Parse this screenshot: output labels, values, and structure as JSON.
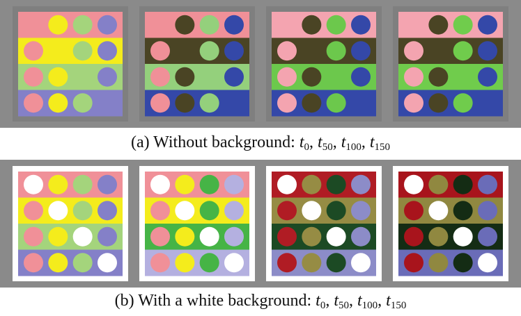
{
  "colors": {
    "row_bg": "#8a8a8a",
    "frame_gray": "#7f7f7f",
    "frame_white": "#ffffff"
  },
  "figure_a": {
    "caption_text": "(a) Without background:",
    "frame": "gray",
    "panels": [
      {
        "stripes": [
          "#f09098",
          "#f4ec1c",
          "#a4d47c",
          "#8480c8"
        ],
        "circles": [
          [
            "#f4ec1c",
            "#a4d47c",
            "#8480c8"
          ],
          [
            "#f09098",
            "#a4d47c",
            "#8480c8"
          ],
          [
            "#f09098",
            "#f4ec1c",
            "#8480c8"
          ],
          [
            "#f09098",
            "#f4ec1c",
            "#a4d47c"
          ]
        ]
      },
      {
        "stripes": [
          "#f09098",
          "#4a4424",
          "#94d07c",
          "#3448a8"
        ],
        "circles": [
          [
            "#4a4424",
            "#94d07c",
            "#3448a8"
          ],
          [
            "#f09098",
            "#94d07c",
            "#3448a8"
          ],
          [
            "#f09098",
            "#4a4424",
            "#3448a8"
          ],
          [
            "#f09098",
            "#4a4424",
            "#94d07c"
          ]
        ]
      },
      {
        "stripes": [
          "#f4a4b0",
          "#4a4424",
          "#6cc84c",
          "#3448a8"
        ],
        "circles": [
          [
            "#4a4424",
            "#6cc84c",
            "#3448a8"
          ],
          [
            "#f4a4b0",
            "#6cc84c",
            "#3448a8"
          ],
          [
            "#f4a4b0",
            "#4a4424",
            "#3448a8"
          ],
          [
            "#f4a4b0",
            "#4a4424",
            "#6cc84c"
          ]
        ]
      },
      {
        "stripes": [
          "#f4a4b0",
          "#4a4424",
          "#70cc4c",
          "#3448a8"
        ],
        "circles": [
          [
            "#4a4424",
            "#70cc4c",
            "#3448a8"
          ],
          [
            "#f4a4b0",
            "#70cc4c",
            "#3448a8"
          ],
          [
            "#f4a4b0",
            "#4a4424",
            "#3448a8"
          ],
          [
            "#f4a4b0",
            "#4a4424",
            "#70cc4c"
          ]
        ]
      }
    ]
  },
  "figure_b": {
    "caption_text": "(b) With a white background:",
    "frame": "white",
    "panels": [
      {
        "stripes": [
          "#f09098",
          "#f4ec1c",
          "#a4d47c",
          "#8480c8"
        ],
        "circles": [
          [
            "#ffffff",
            "#f4ec1c",
            "#a4d47c",
            "#8480c8"
          ],
          [
            "#f09098",
            "#ffffff",
            "#a4d47c",
            "#8480c8"
          ],
          [
            "#f09098",
            "#f4ec1c",
            "#ffffff",
            "#8480c8"
          ],
          [
            "#f09098",
            "#f4ec1c",
            "#a4d47c",
            "#ffffff"
          ]
        ]
      },
      {
        "stripes": [
          "#f09098",
          "#f4ec1c",
          "#46b446",
          "#b4b0e0"
        ],
        "circles": [
          [
            "#ffffff",
            "#f4ec1c",
            "#46b446",
            "#b4b0e0"
          ],
          [
            "#f09098",
            "#ffffff",
            "#46b446",
            "#b4b0e0"
          ],
          [
            "#f09098",
            "#f4ec1c",
            "#ffffff",
            "#b4b0e0"
          ],
          [
            "#f09098",
            "#f4ec1c",
            "#46b446",
            "#ffffff"
          ]
        ]
      },
      {
        "stripes": [
          "#b01c24",
          "#968c44",
          "#1c4a24",
          "#8c8cc8"
        ],
        "circles": [
          [
            "#ffffff",
            "#968c44",
            "#1c4a24",
            "#8c8cc8"
          ],
          [
            "#b01c24",
            "#ffffff",
            "#1c4a24",
            "#8c8cc8"
          ],
          [
            "#b01c24",
            "#968c44",
            "#ffffff",
            "#8c8cc8"
          ],
          [
            "#b01c24",
            "#968c44",
            "#1c4a24",
            "#ffffff"
          ]
        ]
      },
      {
        "stripes": [
          "#a8141c",
          "#908840",
          "#142c14",
          "#6a6cb8"
        ],
        "circles": [
          [
            "#ffffff",
            "#908840",
            "#142c14",
            "#6a6cb8"
          ],
          [
            "#a8141c",
            "#ffffff",
            "#142c14",
            "#6a6cb8"
          ],
          [
            "#a8141c",
            "#908840",
            "#ffffff",
            "#6a6cb8"
          ],
          [
            "#a8141c",
            "#908840",
            "#142c14",
            "#ffffff"
          ]
        ]
      }
    ]
  },
  "caption_symbols": {
    "t": "t",
    "sep": ",",
    "subs": [
      "0",
      "50",
      "100",
      "150"
    ]
  }
}
